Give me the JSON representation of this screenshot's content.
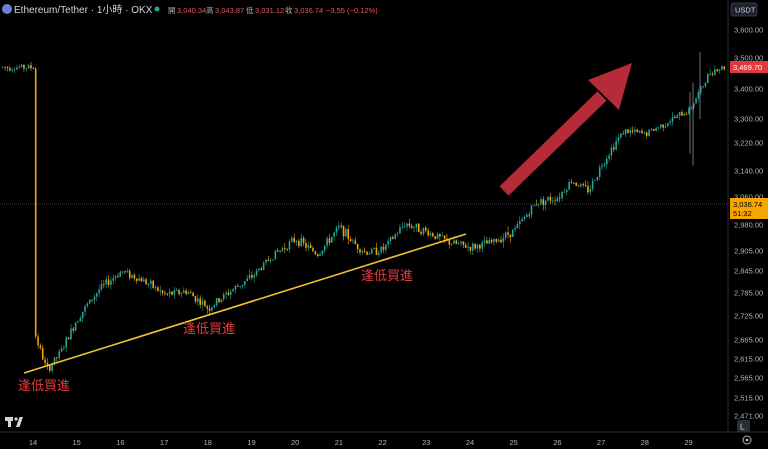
{
  "header": {
    "symbol": "Ethereum/Tether · 1小時 · OKX",
    "open_label": "開",
    "open": "3,040.34",
    "high_label": "高",
    "high": "3,043.87",
    "low_label": "低",
    "low": "3,031.12",
    "close_label": "收",
    "close": "3,036.74",
    "change": "−3.55 (−0.12%)",
    "currency": "USDT"
  },
  "colors": {
    "background": "#000000",
    "up": "#26a69a",
    "down": "#f7a600",
    "trendline": "#f2c230",
    "arrow": "#b62a3a",
    "annotation": "#e83a3a",
    "last_price_bg": "#f7a600",
    "current_price_bg": "#e03940"
  },
  "annotations": [
    {
      "text": "逢低買進"
    },
    {
      "text": "逢低買進"
    },
    {
      "text": "逢低買進"
    }
  ],
  "badges": {
    "current_price": "3,469.70",
    "last_price": "3,036.74",
    "countdown": "51:32"
  },
  "icons": {
    "logo": "tradingview-logo-icon",
    "settings": "gear-icon",
    "log_scale": "L"
  },
  "chart_data": {
    "type": "candlestick",
    "title": "Ethereum/Tether · 1小時 · OKX",
    "xlabel": "",
    "ylabel": "",
    "x_ticks": [
      "14",
      "15",
      "16",
      "17",
      "18",
      "19",
      "20",
      "21",
      "22",
      "23",
      "24",
      "25",
      "26",
      "27",
      "28",
      "29"
    ],
    "y_ticks": [
      3600,
      3500,
      3400,
      3300,
      3220,
      3140,
      3060,
      2980,
      2905,
      2845,
      2785,
      2725,
      2665,
      2615,
      2565,
      2515,
      2471
    ],
    "y_tick_labels": [
      "3,600.00",
      "3,500.00",
      "3,400.00",
      "3,300.00",
      "3,220.00",
      "3,140.00",
      "3,060.00",
      "2,980.00",
      "2,905.00",
      "2,845.00",
      "2,785.00",
      "2,725.00",
      "2,665.00",
      "2,615.00",
      "2,565.00",
      "2,515.00",
      "2,471.00"
    ],
    "ylim": [
      2460,
      3630
    ],
    "series": [
      {
        "values": [
          {
            "x": "14",
            "y": 2690
          },
          {
            "x": "14.3",
            "y": 2585
          },
          {
            "x": "14.6",
            "y": 2630
          },
          {
            "x": "15",
            "y": 2720
          },
          {
            "x": "15.5",
            "y": 2795
          },
          {
            "x": "16",
            "y": 2845
          },
          {
            "x": "16.5",
            "y": 2820
          },
          {
            "x": "17",
            "y": 2780
          },
          {
            "x": "17.5",
            "y": 2790
          },
          {
            "x": "18",
            "y": 2745
          },
          {
            "x": "18.5",
            "y": 2790
          },
          {
            "x": "19",
            "y": 2830
          },
          {
            "x": "19.5",
            "y": 2895
          },
          {
            "x": "20",
            "y": 2940
          },
          {
            "x": "20.5",
            "y": 2895
          },
          {
            "x": "21",
            "y": 2975
          },
          {
            "x": "21.3",
            "y": 2930
          },
          {
            "x": "21.6",
            "y": 2900
          },
          {
            "x": "22",
            "y": 2910
          },
          {
            "x": "22.5",
            "y": 2985
          },
          {
            "x": "23",
            "y": 2960
          },
          {
            "x": "23.5",
            "y": 2930
          },
          {
            "x": "24",
            "y": 2915
          },
          {
            "x": "24.5",
            "y": 2930
          },
          {
            "x": "25",
            "y": 2965
          },
          {
            "x": "25.5",
            "y": 3045
          },
          {
            "x": "26",
            "y": 3060
          },
          {
            "x": "26.3",
            "y": 3110
          },
          {
            "x": "26.7",
            "y": 3080
          },
          {
            "x": "27",
            "y": 3160
          },
          {
            "x": "27.5",
            "y": 3260
          },
          {
            "x": "28",
            "y": 3250
          },
          {
            "x": "28.5",
            "y": 3290
          },
          {
            "x": "29",
            "y": 3330
          },
          {
            "x": "29.5",
            "y": 3460
          },
          {
            "x": "29.8",
            "y": 3470
          }
        ]
      }
    ],
    "ohlc_last": {
      "open": 3040.34,
      "high": 3043.87,
      "low": 3031.12,
      "close": 3036.74
    }
  }
}
